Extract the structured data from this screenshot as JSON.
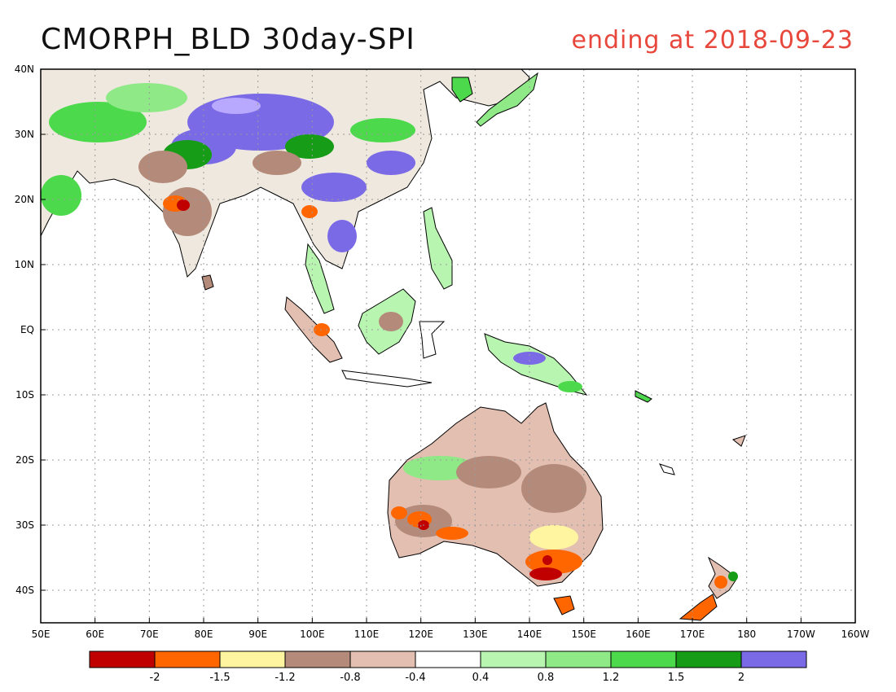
{
  "title": {
    "main": "CMORPH_BLD 30day-SPI",
    "ending": "ending at 2018-09-23"
  },
  "axes": {
    "lon_labels": [
      "50E",
      "60E",
      "70E",
      "80E",
      "90E",
      "100E",
      "110E",
      "120E",
      "130E",
      "140E",
      "150E",
      "160E",
      "170E",
      "180",
      "170W",
      "160W"
    ],
    "lat_labels": [
      "40N",
      "30N",
      "20N",
      "10N",
      "EQ",
      "10S",
      "20S",
      "30S",
      "40S"
    ]
  },
  "colorbar": {
    "colors": [
      "#c00000",
      "#ff6600",
      "#fff4a0",
      "#b48a7a",
      "#e2bfb1",
      "#ffffff",
      "#b8f5b0",
      "#8ee986",
      "#4cd94c",
      "#169c16",
      "#7a6ae6"
    ],
    "tick_labels": [
      "-2",
      "-1.5",
      "-1.2",
      "-0.8",
      "-0.4",
      "0.4",
      "0.8",
      "1.2",
      "1.5",
      "2"
    ]
  }
}
